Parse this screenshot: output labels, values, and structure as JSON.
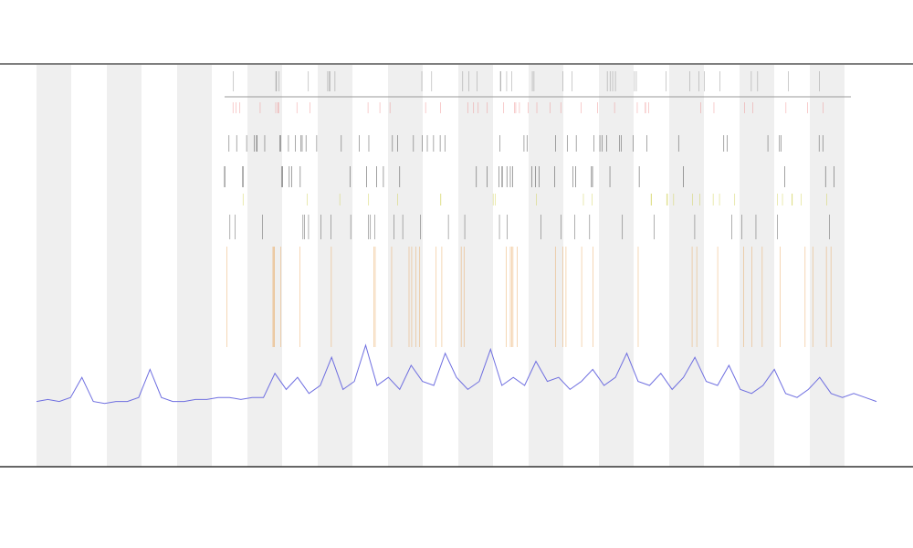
{
  "chart_data": {
    "type": "line",
    "values": [
      16,
      16.5,
      16,
      17,
      22,
      16,
      15.5,
      16,
      16,
      17,
      24,
      17,
      16,
      16,
      16.5,
      16.5,
      17,
      17,
      16.5,
      17,
      17,
      23,
      19,
      22,
      18,
      20,
      27,
      19,
      21,
      30,
      20,
      22,
      19,
      25,
      21,
      20,
      28,
      22,
      19,
      21,
      29,
      20,
      22,
      20,
      26,
      21,
      22,
      19,
      21,
      24,
      20,
      22,
      28,
      21,
      20,
      23,
      19,
      22,
      27,
      21,
      20,
      25,
      19,
      18,
      20,
      24,
      18,
      17,
      19,
      22,
      18,
      17,
      18,
      17,
      16
    ],
    "color": "#6f6fe0",
    "ylim": [
      0,
      100
    ]
  }
}
